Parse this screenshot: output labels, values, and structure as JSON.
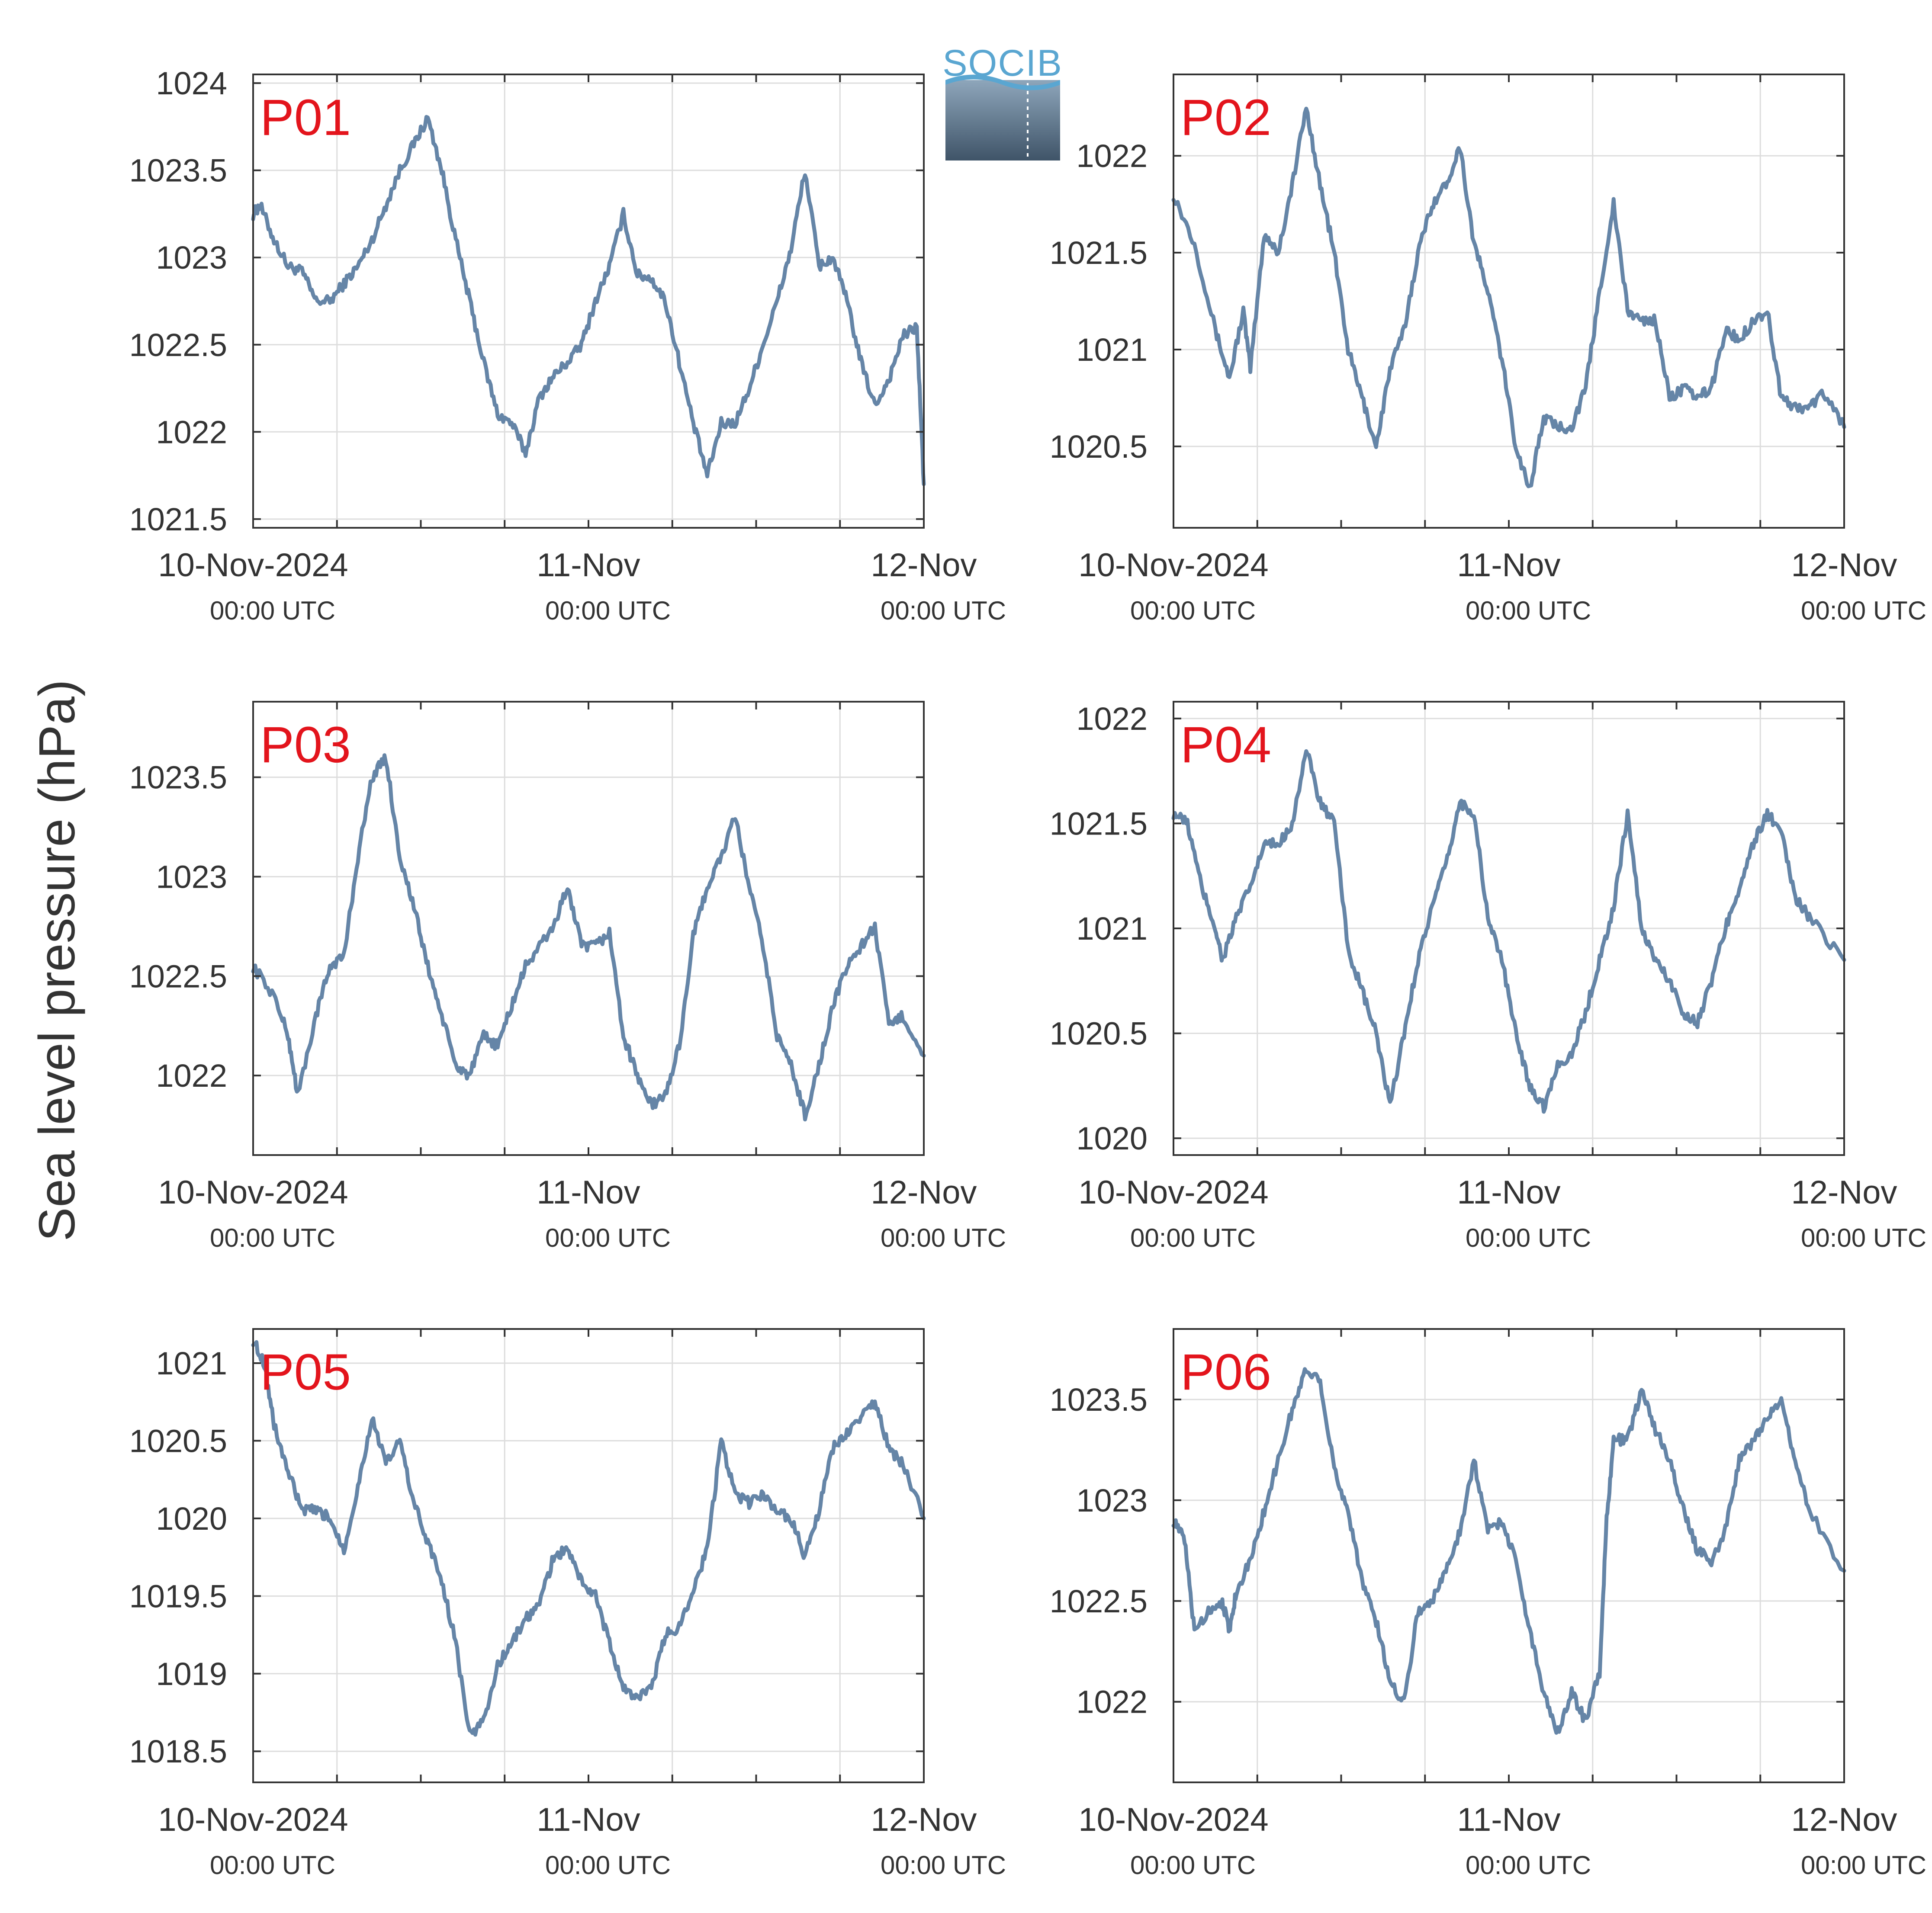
{
  "figure": {
    "ylabel": "Sea level pressure (hPa)",
    "line_color": "#6585a7",
    "station_label_color": "#e3141c",
    "axis_color": "#333333",
    "grid_color": "#dddddd",
    "x_tick_labels": [
      {
        "date": "10-Nov-2024",
        "time": "00:00 UTC"
      },
      {
        "date": "11-Nov",
        "time": "00:00 UTC"
      },
      {
        "date": "12-Nov",
        "time": "00:00 UTC"
      }
    ]
  },
  "logo": {
    "text": "SOCIB",
    "text_color": "#5aa6d1",
    "gradient_top": "#8ea6bb",
    "gradient_bottom": "#3f5468"
  },
  "chart_data": [
    {
      "type": "line",
      "name": "P01",
      "x_range_hours": [
        0,
        48
      ],
      "ylim": [
        1021.45,
        1024.05
      ],
      "yticks": [
        {
          "v": 1021.5,
          "label": "1021.5"
        },
        {
          "v": 1022,
          "label": "1022"
        },
        {
          "v": 1022.5,
          "label": "1022.5"
        },
        {
          "v": 1023,
          "label": "1023"
        },
        {
          "v": 1023.5,
          "label": "1023.5"
        },
        {
          "v": 1024,
          "label": "1024"
        }
      ],
      "keypoints": [
        [
          0,
          1023.25
        ],
        [
          0.5,
          1023.3
        ],
        [
          1.5,
          1023.1
        ],
        [
          2.5,
          1022.95
        ],
        [
          3.5,
          1022.92
        ],
        [
          4.5,
          1022.75
        ],
        [
          5.5,
          1022.75
        ],
        [
          6.5,
          1022.85
        ],
        [
          7.5,
          1022.95
        ],
        [
          8.5,
          1023.1
        ],
        [
          9.5,
          1023.3
        ],
        [
          10.5,
          1023.5
        ],
        [
          11.5,
          1023.65
        ],
        [
          12.5,
          1023.8
        ],
        [
          13.5,
          1023.5
        ],
        [
          14.5,
          1023.1
        ],
        [
          15.5,
          1022.75
        ],
        [
          16.5,
          1022.4
        ],
        [
          17.5,
          1022.1
        ],
        [
          18.5,
          1022.05
        ],
        [
          19.5,
          1021.88
        ],
        [
          20.5,
          1022.2
        ],
        [
          21.5,
          1022.32
        ],
        [
          22.5,
          1022.4
        ],
        [
          23.5,
          1022.5
        ],
        [
          24.5,
          1022.75
        ],
        [
          25.5,
          1022.95
        ],
        [
          26.5,
          1023.25
        ],
        [
          27.5,
          1022.9
        ],
        [
          28.5,
          1022.88
        ],
        [
          29.5,
          1022.75
        ],
        [
          30.5,
          1022.4
        ],
        [
          31.5,
          1022.05
        ],
        [
          32.5,
          1021.75
        ],
        [
          33.5,
          1022.05
        ],
        [
          34.5,
          1022.05
        ],
        [
          35.5,
          1022.25
        ],
        [
          36.5,
          1022.5
        ],
        [
          37.5,
          1022.75
        ],
        [
          38.5,
          1023.05
        ],
        [
          39.5,
          1023.5
        ],
        [
          40.5,
          1022.95
        ],
        [
          41.5,
          1023.0
        ],
        [
          42.5,
          1022.75
        ],
        [
          43.5,
          1022.4
        ],
        [
          44.5,
          1022.15
        ],
        [
          45.5,
          1022.3
        ],
        [
          46.5,
          1022.55
        ],
        [
          47.5,
          1022.6
        ],
        [
          48,
          1021.7
        ]
      ]
    },
    {
      "type": "line",
      "name": "P02",
      "x_range_hours": [
        0,
        48
      ],
      "ylim": [
        1020.08,
        1022.42
      ],
      "yticks": [
        {
          "v": 1020.5,
          "label": "1020.5"
        },
        {
          "v": 1021,
          "label": "1021"
        },
        {
          "v": 1021.5,
          "label": "1021.5"
        },
        {
          "v": 1022,
          "label": "1022"
        }
      ],
      "keypoints": [
        [
          0,
          1021.8
        ],
        [
          1.5,
          1021.55
        ],
        [
          3,
          1021.1
        ],
        [
          4,
          1020.85
        ],
        [
          5,
          1021.2
        ],
        [
          5.5,
          1020.9
        ],
        [
          6.5,
          1021.6
        ],
        [
          7.5,
          1021.5
        ],
        [
          8.5,
          1021.85
        ],
        [
          9.5,
          1022.25
        ],
        [
          10.5,
          1021.85
        ],
        [
          11.5,
          1021.5
        ],
        [
          12.5,
          1021.0
        ],
        [
          13.5,
          1020.75
        ],
        [
          14.5,
          1020.5
        ],
        [
          15.5,
          1020.9
        ],
        [
          16.5,
          1021.1
        ],
        [
          17.5,
          1021.5
        ],
        [
          18.5,
          1021.75
        ],
        [
          19.5,
          1021.85
        ],
        [
          20.5,
          1022.05
        ],
        [
          21.5,
          1021.55
        ],
        [
          22.5,
          1021.3
        ],
        [
          23.5,
          1020.95
        ],
        [
          24.5,
          1020.5
        ],
        [
          25.5,
          1020.28
        ],
        [
          26.5,
          1020.65
        ],
        [
          27.5,
          1020.6
        ],
        [
          28.5,
          1020.6
        ],
        [
          29.5,
          1020.8
        ],
        [
          30.5,
          1021.3
        ],
        [
          31.5,
          1021.75
        ],
        [
          32.5,
          1021.2
        ],
        [
          33.5,
          1021.15
        ],
        [
          34.5,
          1021.15
        ],
        [
          35.5,
          1020.75
        ],
        [
          36.5,
          1020.8
        ],
        [
          37.5,
          1020.75
        ],
        [
          38.5,
          1020.8
        ],
        [
          39.5,
          1021.1
        ],
        [
          40.5,
          1021.05
        ],
        [
          41.5,
          1021.15
        ],
        [
          42.5,
          1021.2
        ],
        [
          43.5,
          1020.75
        ],
        [
          44.5,
          1020.7
        ],
        [
          45.5,
          1020.7
        ],
        [
          46.5,
          1020.78
        ],
        [
          48,
          1020.6
        ]
      ]
    },
    {
      "type": "line",
      "name": "P03",
      "x_range_hours": [
        0,
        48
      ],
      "ylim": [
        1021.6,
        1023.88
      ],
      "yticks": [
        {
          "v": 1022,
          "label": "1022"
        },
        {
          "v": 1022.5,
          "label": "1022.5"
        },
        {
          "v": 1023,
          "label": "1023"
        },
        {
          "v": 1023.5,
          "label": "1023.5"
        }
      ],
      "keypoints": [
        [
          0,
          1022.55
        ],
        [
          1.5,
          1022.4
        ],
        [
          2.5,
          1022.2
        ],
        [
          3.2,
          1021.9
        ],
        [
          4.5,
          1022.3
        ],
        [
          5.5,
          1022.55
        ],
        [
          6.5,
          1022.6
        ],
        [
          7.5,
          1023.1
        ],
        [
          8.5,
          1023.5
        ],
        [
          9.5,
          1023.6
        ],
        [
          10.5,
          1023.1
        ],
        [
          11.5,
          1022.85
        ],
        [
          12.5,
          1022.55
        ],
        [
          13.5,
          1022.3
        ],
        [
          14.5,
          1022.05
        ],
        [
          15.5,
          1022.0
        ],
        [
          16.5,
          1022.2
        ],
        [
          17.5,
          1022.15
        ],
        [
          18.5,
          1022.35
        ],
        [
          19.5,
          1022.55
        ],
        [
          20.5,
          1022.65
        ],
        [
          21.5,
          1022.75
        ],
        [
          22.5,
          1022.95
        ],
        [
          23.5,
          1022.65
        ],
        [
          24.5,
          1022.65
        ],
        [
          25.5,
          1022.72
        ],
        [
          26.5,
          1022.2
        ],
        [
          27.5,
          1022.0
        ],
        [
          28.5,
          1021.85
        ],
        [
          29.5,
          1021.9
        ],
        [
          30.5,
          1022.15
        ],
        [
          31.5,
          1022.7
        ],
        [
          32.5,
          1022.95
        ],
        [
          33.5,
          1023.1
        ],
        [
          34.5,
          1023.3
        ],
        [
          35.5,
          1022.95
        ],
        [
          36.5,
          1022.65
        ],
        [
          37.5,
          1022.2
        ],
        [
          38.5,
          1022.05
        ],
        [
          39.5,
          1021.8
        ],
        [
          40.5,
          1022.05
        ],
        [
          41.5,
          1022.35
        ],
        [
          42.5,
          1022.55
        ],
        [
          43.5,
          1022.65
        ],
        [
          44.5,
          1022.75
        ],
        [
          45.5,
          1022.25
        ],
        [
          46.5,
          1022.3
        ],
        [
          48,
          1022.1
        ]
      ]
    },
    {
      "type": "line",
      "name": "P04",
      "x_range_hours": [
        0,
        48
      ],
      "ylim": [
        1019.92,
        1022.08
      ],
      "yticks": [
        {
          "v": 1020,
          "label": "1020"
        },
        {
          "v": 1020.5,
          "label": "1020.5"
        },
        {
          "v": 1021,
          "label": "1021"
        },
        {
          "v": 1021.5,
          "label": "1021.5"
        },
        {
          "v": 1022,
          "label": "1022"
        }
      ],
      "keypoints": [
        [
          0,
          1021.55
        ],
        [
          1,
          1021.5
        ],
        [
          2,
          1021.2
        ],
        [
          3,
          1021.0
        ],
        [
          3.5,
          1020.85
        ],
        [
          4.5,
          1021.05
        ],
        [
          5.5,
          1021.2
        ],
        [
          6.5,
          1021.4
        ],
        [
          7.5,
          1021.4
        ],
        [
          8.5,
          1021.5
        ],
        [
          9.5,
          1021.85
        ],
        [
          10.5,
          1021.6
        ],
        [
          11.5,
          1021.5
        ],
        [
          12.5,
          1020.9
        ],
        [
          13.5,
          1020.7
        ],
        [
          14.5,
          1020.5
        ],
        [
          15.5,
          1020.15
        ],
        [
          16.5,
          1020.5
        ],
        [
          17.5,
          1020.85
        ],
        [
          18.5,
          1021.1
        ],
        [
          19.5,
          1021.3
        ],
        [
          20.5,
          1021.6
        ],
        [
          21.5,
          1021.55
        ],
        [
          22.5,
          1021.05
        ],
        [
          23.5,
          1020.85
        ],
        [
          24.5,
          1020.5
        ],
        [
          25.5,
          1020.25
        ],
        [
          26.5,
          1020.15
        ],
        [
          27.5,
          1020.35
        ],
        [
          28.5,
          1020.4
        ],
        [
          29.5,
          1020.6
        ],
        [
          30.5,
          1020.85
        ],
        [
          31.5,
          1021.1
        ],
        [
          32.5,
          1021.55
        ],
        [
          33.5,
          1021.0
        ],
        [
          34.5,
          1020.85
        ],
        [
          35.5,
          1020.75
        ],
        [
          36.5,
          1020.6
        ],
        [
          37.5,
          1020.55
        ],
        [
          38.5,
          1020.75
        ],
        [
          39.5,
          1021.0
        ],
        [
          40.5,
          1021.2
        ],
        [
          41.5,
          1021.4
        ],
        [
          42.5,
          1021.55
        ],
        [
          43.5,
          1021.45
        ],
        [
          44.5,
          1021.15
        ],
        [
          45.5,
          1021.05
        ],
        [
          48,
          1020.85
        ]
      ]
    },
    {
      "type": "line",
      "name": "P05",
      "x_range_hours": [
        0,
        48
      ],
      "ylim": [
        1018.3,
        1021.22
      ],
      "yticks": [
        {
          "v": 1018.5,
          "label": "1018.5"
        },
        {
          "v": 1019,
          "label": "1019"
        },
        {
          "v": 1019.5,
          "label": "1019.5"
        },
        {
          "v": 1020,
          "label": "1020"
        },
        {
          "v": 1020.5,
          "label": "1020.5"
        },
        {
          "v": 1021,
          "label": "1021"
        }
      ],
      "keypoints": [
        [
          0,
          1021.15
        ],
        [
          0.8,
          1021.0
        ],
        [
          1.5,
          1020.6
        ],
        [
          2.5,
          1020.3
        ],
        [
          3.5,
          1020.05
        ],
        [
          4.5,
          1020.05
        ],
        [
          5.5,
          1020.0
        ],
        [
          6.5,
          1019.8
        ],
        [
          7.5,
          1020.2
        ],
        [
          8.5,
          1020.65
        ],
        [
          9.5,
          1020.35
        ],
        [
          10.5,
          1020.5
        ],
        [
          11.5,
          1020.1
        ],
        [
          12.5,
          1019.85
        ],
        [
          13.5,
          1019.6
        ],
        [
          14.5,
          1019.2
        ],
        [
          15.5,
          1018.6
        ],
        [
          16.5,
          1018.7
        ],
        [
          17.5,
          1019.05
        ],
        [
          18.5,
          1019.2
        ],
        [
          19.5,
          1019.35
        ],
        [
          20.5,
          1019.45
        ],
        [
          21.5,
          1019.75
        ],
        [
          22.5,
          1019.8
        ],
        [
          23.5,
          1019.6
        ],
        [
          24.5,
          1019.5
        ],
        [
          25.5,
          1019.2
        ],
        [
          26.5,
          1018.9
        ],
        [
          27.5,
          1018.85
        ],
        [
          28.5,
          1018.9
        ],
        [
          29.5,
          1019.25
        ],
        [
          30.5,
          1019.3
        ],
        [
          31.5,
          1019.55
        ],
        [
          32.5,
          1019.8
        ],
        [
          33.5,
          1020.5
        ],
        [
          34.5,
          1020.15
        ],
        [
          35.5,
          1020.1
        ],
        [
          36.5,
          1020.15
        ],
        [
          37.5,
          1020.05
        ],
        [
          38.5,
          1020.0
        ],
        [
          39.5,
          1019.75
        ],
        [
          40.5,
          1020.05
        ],
        [
          41.5,
          1020.45
        ],
        [
          42.5,
          1020.55
        ],
        [
          43.5,
          1020.65
        ],
        [
          44.5,
          1020.75
        ],
        [
          45.5,
          1020.45
        ],
        [
          46.5,
          1020.35
        ],
        [
          48,
          1020.0
        ]
      ]
    },
    {
      "type": "line",
      "name": "P06",
      "x_range_hours": [
        0,
        48
      ],
      "ylim": [
        1021.6,
        1023.85
      ],
      "yticks": [
        {
          "v": 1022,
          "label": "1022"
        },
        {
          "v": 1022.5,
          "label": "1022.5"
        },
        {
          "v": 1023,
          "label": "1023"
        },
        {
          "v": 1023.5,
          "label": "1023.5"
        }
      ],
      "keypoints": [
        [
          0,
          1022.9
        ],
        [
          0.8,
          1022.8
        ],
        [
          1.5,
          1022.35
        ],
        [
          2.5,
          1022.45
        ],
        [
          3.5,
          1022.5
        ],
        [
          4,
          1022.35
        ],
        [
          4.5,
          1022.55
        ],
        [
          5.5,
          1022.7
        ],
        [
          6.5,
          1022.95
        ],
        [
          7.5,
          1023.2
        ],
        [
          8.5,
          1023.45
        ],
        [
          9.5,
          1023.65
        ],
        [
          10.5,
          1023.6
        ],
        [
          11.5,
          1023.15
        ],
        [
          12.5,
          1022.95
        ],
        [
          13.5,
          1022.6
        ],
        [
          14.5,
          1022.4
        ],
        [
          15.5,
          1022.1
        ],
        [
          16.5,
          1022.0
        ],
        [
          17.5,
          1022.45
        ],
        [
          18.5,
          1022.5
        ],
        [
          19.5,
          1022.65
        ],
        [
          20.5,
          1022.85
        ],
        [
          21.5,
          1023.2
        ],
        [
          22.5,
          1022.85
        ],
        [
          23.5,
          1022.9
        ],
        [
          24.5,
          1022.7
        ],
        [
          25.5,
          1022.35
        ],
        [
          26.5,
          1022.05
        ],
        [
          27.5,
          1021.85
        ],
        [
          28.5,
          1022.05
        ],
        [
          29.5,
          1021.9
        ],
        [
          30.5,
          1022.15
        ],
        [
          31.0,
          1022.9
        ],
        [
          31.5,
          1023.3
        ],
        [
          32.5,
          1023.3
        ],
        [
          33.5,
          1023.55
        ],
        [
          34.5,
          1023.35
        ],
        [
          35.5,
          1023.2
        ],
        [
          36.5,
          1022.95
        ],
        [
          37.5,
          1022.75
        ],
        [
          38.5,
          1022.7
        ],
        [
          39.5,
          1022.85
        ],
        [
          40.5,
          1023.2
        ],
        [
          41.5,
          1023.3
        ],
        [
          42.5,
          1023.4
        ],
        [
          43.5,
          1023.5
        ],
        [
          44.5,
          1023.2
        ],
        [
          45.5,
          1022.95
        ],
        [
          48,
          1022.65
        ]
      ]
    }
  ]
}
